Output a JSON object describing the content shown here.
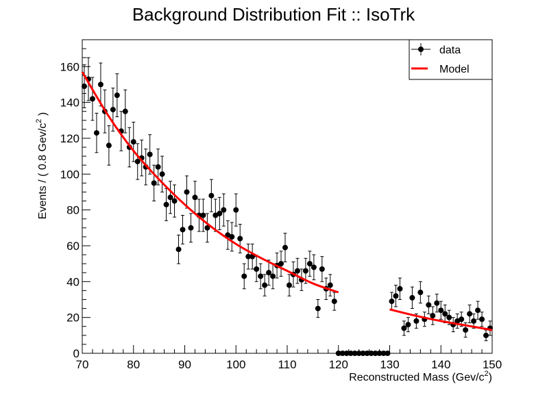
{
  "chart_data": {
    "type": "scatter",
    "title": "Background Distribution Fit :: IsoTrk",
    "xlabel": "Reconstructed Mass (Gev/c",
    "xlabel_sup": "2",
    "xlabel_end": ")",
    "ylabel": "Events / ( 0.8 Gev/c",
    "ylabel_sup": "2",
    "ylabel_end": " )",
    "xlim": [
      70,
      150
    ],
    "ylim": [
      0,
      175
    ],
    "xticks": [
      70,
      80,
      90,
      100,
      110,
      120,
      130,
      140,
      150
    ],
    "yticks": [
      0,
      20,
      40,
      60,
      80,
      100,
      120,
      140,
      160
    ],
    "grid": false,
    "legend": {
      "placement": "top-right",
      "entries": [
        {
          "label": "data",
          "color": "#000000",
          "style": "marker-errorbar"
        },
        {
          "label": "Model",
          "color": "#ff0000",
          "style": "line"
        }
      ]
    },
    "series": [
      {
        "name": "data",
        "color": "#000000",
        "bin_width": 0.8,
        "x": [
          70.4,
          71.2,
          72.0,
          72.8,
          73.6,
          74.4,
          75.2,
          76.0,
          76.8,
          77.6,
          78.4,
          79.2,
          80.0,
          80.8,
          81.6,
          82.4,
          83.2,
          84.0,
          84.8,
          85.6,
          86.4,
          87.2,
          88.0,
          88.8,
          89.6,
          90.4,
          91.2,
          92.0,
          92.8,
          93.6,
          94.4,
          95.2,
          96.0,
          96.8,
          97.6,
          98.4,
          99.2,
          100.0,
          100.8,
          101.6,
          102.4,
          103.2,
          104.0,
          104.8,
          105.6,
          106.4,
          107.2,
          108.0,
          108.8,
          109.6,
          110.4,
          111.2,
          112.0,
          112.8,
          113.6,
          114.4,
          115.2,
          116.0,
          116.8,
          117.6,
          118.4,
          119.2,
          120.0,
          120.8,
          121.6,
          122.4,
          123.2,
          124.0,
          124.8,
          125.6,
          126.4,
          127.2,
          128.0,
          128.8,
          129.6,
          130.4,
          131.2,
          132.0,
          132.8,
          133.6,
          134.4,
          135.2,
          136.0,
          136.8,
          137.6,
          138.4,
          139.2,
          140.0,
          140.8,
          141.6,
          142.4,
          143.2,
          144.0,
          144.8,
          145.6,
          146.4,
          147.2,
          148.0,
          148.8,
          149.6
        ],
        "y": [
          149,
          153,
          142,
          123,
          150,
          135,
          116,
          136,
          144,
          124,
          135,
          115,
          118,
          107,
          109,
          104,
          111,
          95,
          104,
          100,
          83,
          87,
          85,
          58,
          69,
          90,
          70,
          87,
          77,
          77,
          70,
          88,
          77,
          78,
          80,
          66,
          65,
          80,
          64,
          43,
          54,
          54,
          47,
          43,
          38,
          45,
          43,
          49,
          50,
          59,
          38,
          44,
          46,
          41,
          46,
          50,
          48,
          25,
          47,
          36,
          38,
          29,
          0,
          0,
          0,
          0,
          0,
          0,
          0,
          0,
          0,
          0,
          0,
          0,
          0,
          29,
          32,
          36,
          14,
          16,
          31,
          18,
          34,
          19,
          27,
          21,
          28,
          24,
          22,
          20,
          16,
          18,
          19,
          13,
          22,
          18,
          24,
          19,
          10,
          14
        ],
        "y_err": [
          12,
          12,
          12,
          11,
          12,
          12,
          11,
          12,
          12,
          11,
          12,
          11,
          11,
          10,
          10,
          10,
          11,
          10,
          10,
          10,
          9,
          9,
          9,
          8,
          8,
          9,
          8,
          9,
          9,
          9,
          8,
          9,
          9,
          9,
          9,
          8,
          8,
          9,
          8,
          7,
          7,
          7,
          7,
          7,
          6,
          7,
          7,
          7,
          7,
          8,
          6,
          7,
          7,
          6,
          7,
          7,
          7,
          5,
          7,
          6,
          6,
          5,
          0,
          0,
          0,
          0,
          0,
          0,
          0,
          0,
          0,
          0,
          0,
          0,
          0,
          5,
          6,
          6,
          4,
          4,
          6,
          4,
          6,
          4,
          5,
          5,
          5,
          5,
          5,
          4,
          4,
          4,
          4,
          4,
          5,
          4,
          5,
          4,
          3,
          4
        ]
      },
      {
        "name": "Model",
        "color": "#ff0000",
        "type": "line",
        "segments": [
          {
            "x": [
              70,
              75,
              80,
              85,
              90,
              95,
              100,
              105,
              110,
              115,
              120
            ],
            "y": [
              157,
              133,
              113,
              97,
              83,
              71,
              61,
              53,
              46,
              39,
              34
            ]
          },
          {
            "x": [
              130,
              135,
              140,
              145,
              150
            ],
            "y": [
              24.5,
              21,
              18,
              15.5,
              13
            ]
          }
        ]
      }
    ]
  }
}
